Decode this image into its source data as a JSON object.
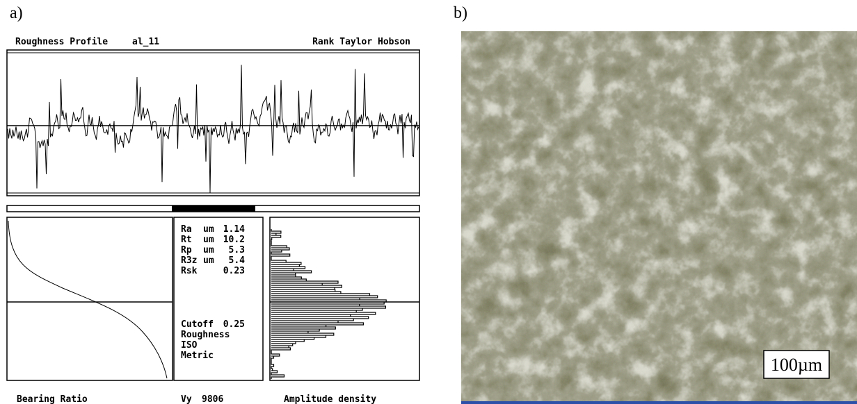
{
  "panel_a": {
    "label": "a)",
    "header": {
      "title": "Roughness Profile",
      "sample": "al_11",
      "instrument": "Rank Taylor Hobson"
    },
    "parameters": [
      {
        "name": "Ra",
        "unit": "um",
        "value": 1.14
      },
      {
        "name": "Rt",
        "unit": "um",
        "value": 10.2
      },
      {
        "name": "Rp",
        "unit": "um",
        "value": 5.3
      },
      {
        "name": "R3z",
        "unit": "um",
        "value": 5.4
      },
      {
        "name": "Rsk",
        "value": 0.23
      }
    ],
    "cutoff": {
      "name": "Cutoff",
      "value": 0.25
    },
    "settings": [
      "Roughness",
      "ISO",
      "Metric"
    ],
    "footer": {
      "left": "Bearing Ratio",
      "middle": {
        "name": "Vy",
        "value": 9806
      },
      "right": "Amplitude density"
    }
  },
  "panel_b": {
    "label": "b)",
    "scale_bar": "100µm"
  }
}
